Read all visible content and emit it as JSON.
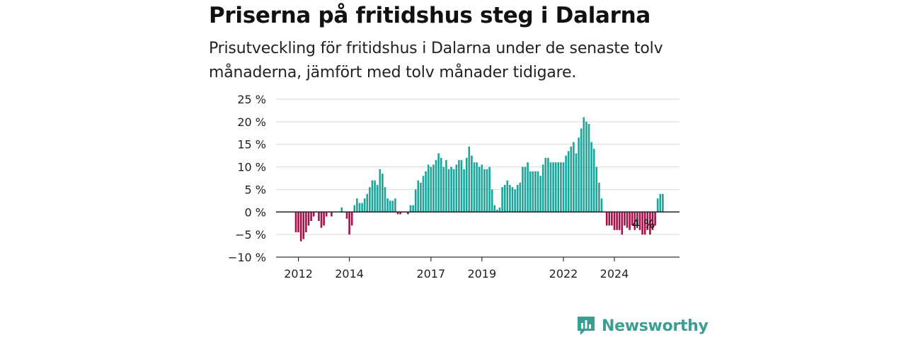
{
  "title": "Priserna på fritidshus steg i Dalarna",
  "subtitle": "Prisutveckling för fritidshus i Dalarna under de senaste tolv månaderna, jämfört med tolv månader tidigare.",
  "brand": {
    "name": "Newsworthy",
    "icon": "newsworthy-logo-icon",
    "color": "#3a9e92"
  },
  "colors": {
    "positive": "#1aa59a",
    "negative": "#a5124a"
  },
  "chart_data": {
    "type": "bar",
    "title": "Priserna på fritidshus steg i Dalarna",
    "xlabel": "",
    "ylabel": "",
    "ylim": [
      -10,
      25
    ],
    "y_ticks": [
      25,
      20,
      15,
      10,
      5,
      0,
      -5,
      -10
    ],
    "y_tick_labels": [
      "25 %",
      "20 %",
      "15 %",
      "10 %",
      "5 %",
      "0 %",
      "−5 %",
      "−10 %"
    ],
    "x_tick_labels": [
      {
        "label": "2012",
        "index": 1
      },
      {
        "label": "2014",
        "index": 21
      },
      {
        "label": "2017",
        "index": 53
      },
      {
        "label": "2019",
        "index": 73
      },
      {
        "label": "2022",
        "index": 105
      },
      {
        "label": "2024",
        "index": 125
      }
    ],
    "grid": true,
    "legend": "none",
    "annotation": {
      "text": "4 %",
      "index": 137
    },
    "values": [
      -4.5,
      -4.5,
      -6.5,
      -6,
      -4.5,
      -3,
      -2,
      -1,
      0,
      -2,
      -3.5,
      -3,
      -1,
      0,
      -1,
      0,
      0,
      0,
      1,
      0,
      -1.5,
      -5,
      -3,
      1.5,
      3,
      2,
      2,
      3,
      4,
      5.5,
      7,
      7,
      6,
      9.5,
      8.5,
      5.5,
      3,
      2.5,
      2.5,
      3,
      -0.5,
      -0.5,
      0,
      0,
      -0.5,
      1.5,
      1.5,
      5,
      7,
      6.5,
      8,
      9,
      10.5,
      10,
      10.5,
      11.5,
      13,
      12,
      10,
      11.5,
      9.5,
      10,
      9.5,
      10.5,
      11.5,
      11.5,
      9.5,
      12,
      14.5,
      12.5,
      11,
      11,
      10,
      10.5,
      9.5,
      9.5,
      10,
      5,
      1.5,
      0.5,
      1,
      5.5,
      6,
      7,
      6,
      5.5,
      5,
      6,
      6.5,
      10,
      10,
      11,
      9,
      9,
      9,
      9,
      8,
      10.5,
      12,
      12,
      11,
      11,
      11,
      11,
      11,
      11,
      12.5,
      13.5,
      14.5,
      15.5,
      13,
      16.5,
      18.5,
      21,
      20,
      19.5,
      15.5,
      14,
      10,
      6.5,
      3,
      0,
      -3,
      -3,
      -3,
      -4,
      -4,
      -4,
      -5,
      -3,
      -3.5,
      -4,
      -3,
      -4,
      -3,
      -4,
      -5,
      -5,
      -4,
      -5,
      -4,
      -3,
      3,
      4,
      4
    ]
  }
}
